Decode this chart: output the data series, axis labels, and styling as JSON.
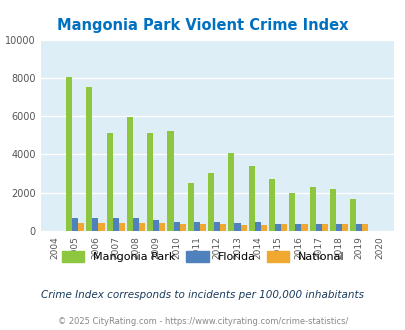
{
  "title": "Mangonia Park Violent Crime Index",
  "years": [
    2004,
    2005,
    2006,
    2007,
    2008,
    2009,
    2010,
    2011,
    2012,
    2013,
    2014,
    2015,
    2016,
    2017,
    2018,
    2019,
    2020
  ],
  "mangonia_park": [
    0,
    8050,
    7500,
    5100,
    5950,
    5100,
    5250,
    2500,
    3050,
    4100,
    3380,
    2700,
    2000,
    2280,
    2200,
    1650,
    0
  ],
  "florida": [
    0,
    700,
    700,
    700,
    700,
    550,
    490,
    490,
    490,
    420,
    460,
    380,
    380,
    390,
    360,
    380,
    0
  ],
  "national": [
    0,
    420,
    420,
    420,
    420,
    420,
    380,
    370,
    350,
    320,
    330,
    360,
    370,
    340,
    350,
    340,
    0
  ],
  "mangonia_color": "#8dc63f",
  "florida_color": "#4f81bd",
  "national_color": "#f0a830",
  "bg_color": "#ddeef6",
  "ylim": [
    0,
    10000
  ],
  "yticks": [
    0,
    2000,
    4000,
    6000,
    8000,
    10000
  ],
  "title_color": "#0070c0",
  "subtitle": "Crime Index corresponds to incidents per 100,000 inhabitants",
  "footer": "© 2025 CityRating.com - https://www.cityrating.com/crime-statistics/",
  "legend_labels": [
    "Mangonia Park",
    "Florida",
    "National"
  ],
  "grid_color": "#ffffff"
}
